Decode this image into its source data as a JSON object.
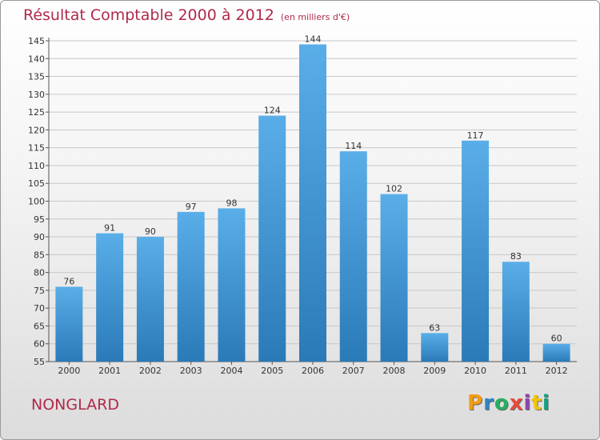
{
  "title": "Résultat Comptable 2000 à 2012",
  "subtitle": "(en milliers d'€)",
  "town": "NONGLARD",
  "logo": {
    "letters": [
      "P",
      "r",
      "o",
      "x",
      "i",
      "t",
      "i"
    ],
    "colors": [
      "#f39c12",
      "#2e86c1",
      "#27ae60",
      "#e74c3c",
      "#8e44ad",
      "#f1c40f",
      "#16a085"
    ]
  },
  "colors": {
    "bar_top": "#5aaee8",
    "bar_bottom": "#2a7ab8",
    "title": "#b02a4a",
    "grid": "#c8c8c8"
  },
  "chart_data": {
    "type": "bar",
    "title": "Résultat Comptable 2000 à 2012",
    "xlabel": "",
    "ylabel": "",
    "categories": [
      "2000",
      "2001",
      "2002",
      "2003",
      "2004",
      "2005",
      "2006",
      "2007",
      "2008",
      "2009",
      "2010",
      "2011",
      "2012"
    ],
    "values": [
      76,
      91,
      90,
      97,
      98,
      124,
      144,
      114,
      102,
      63,
      117,
      83,
      60
    ],
    "ylim": [
      55,
      145
    ],
    "yticks": [
      55,
      60,
      65,
      70,
      75,
      80,
      85,
      90,
      95,
      100,
      105,
      110,
      115,
      120,
      125,
      130,
      135,
      140,
      145
    ],
    "grid": true
  }
}
